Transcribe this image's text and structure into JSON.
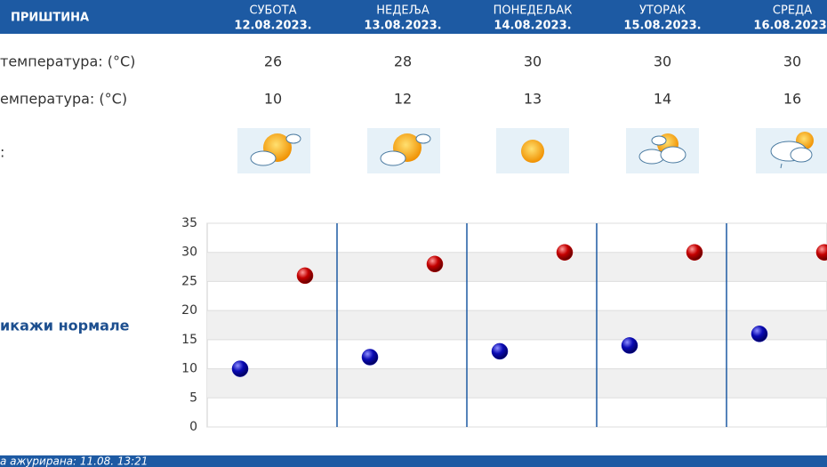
{
  "header": {
    "city": "ПРИШТИНА"
  },
  "days": [
    {
      "name": "СУБОТА",
      "date": "12.08.2023."
    },
    {
      "name": "НЕДЕЉА",
      "date": "13.08.2023."
    },
    {
      "name": "ПОНЕДЕЉАК",
      "date": "14.08.2023."
    },
    {
      "name": "УТОРАК",
      "date": "15.08.2023."
    },
    {
      "name": "СРЕДА",
      "date": "16.08.2023."
    }
  ],
  "rows": [
    {
      "label": "температура: (°C)",
      "values": [
        26,
        28,
        30,
        30,
        30
      ]
    },
    {
      "label": "емпература: (°C)",
      "values": [
        10,
        12,
        13,
        14,
        16
      ]
    },
    {
      "label": ":"
    }
  ],
  "link": "икажи нормале",
  "footer": "а ажурирана:  11.08. 13:21",
  "chart_data": {
    "type": "scatter",
    "series": [
      {
        "color": "#c40000",
        "values": [
          26,
          28,
          30,
          30,
          30
        ]
      },
      {
        "color": "#0a0ab4",
        "values": [
          10,
          12,
          13,
          14,
          16
        ]
      }
    ],
    "ylim": [
      0,
      35
    ],
    "yticks": [
      0,
      5,
      10,
      15,
      20,
      25,
      30,
      35
    ],
    "grid": true
  }
}
